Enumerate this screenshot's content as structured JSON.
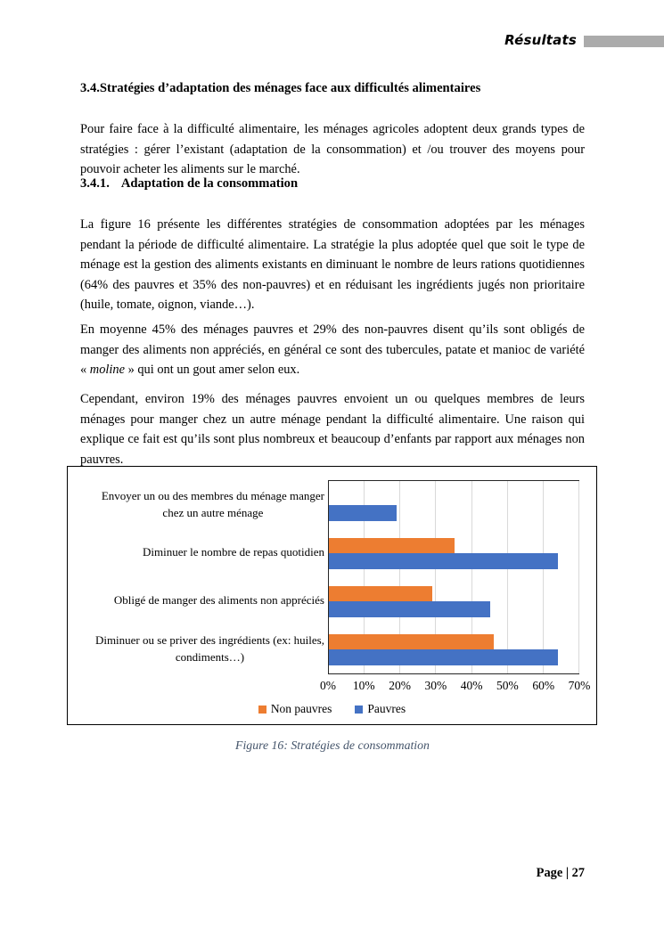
{
  "header": {
    "title": "Résultats"
  },
  "content": {
    "heading_3_4": "3.4.Stratégies d’adaptation des ménages face aux difficultés alimentaires",
    "para_intro": "Pour faire face à la difficulté alimentaire, les ménages agricoles adoptent deux grands types de stratégies : gérer l’existant (adaptation de la consommation) et /ou trouver des moyens pour pouvoir acheter les aliments sur le marché.",
    "heading_3_4_1_num": "3.4.1.",
    "heading_3_4_1_title": "Adaptation de la consommation",
    "para_figure": "La figure 16 présente les différentes stratégies de consommation adoptées par les ménages pendant la période de difficulté alimentaire. La stratégie la plus adoptée quel que soit le type de ménage est la gestion des aliments existants en diminuant le nombre de leurs rations quotidiennes (64% des pauvres et 35% des non-pauvres) et en réduisant les ingrédients jugés non prioritaire (huile, tomate, oignon, viande…).",
    "para_moline_pre": "En moyenne 45% des ménages pauvres et 29% des non-pauvres disent qu’ils sont obligés de manger des aliments non appréciés, en général ce sont des tubercules, patate et manioc de variété « ",
    "para_moline_italic": "moline",
    "para_moline_post": " » qui ont un gout amer selon eux.",
    "para_cependant": "Cependant, environ 19% des ménages pauvres envoient un ou quelques membres de leurs ménages pour manger chez un autre ménage pendant la difficulté alimentaire. Une raison qui explique ce fait est qu’ils sont plus nombreux et beaucoup d’enfants par rapport aux ménages non pauvres."
  },
  "chart_data": {
    "type": "bar",
    "orientation": "horizontal",
    "categories": [
      "Envoyer un ou des membres du ménage manger\nchez un autre ménage",
      "Diminuer le nombre de repas quotidien",
      "Obligé  de manger des aliments non appréciés",
      "Diminuer ou se priver des ingrédients (ex: huiles,\ncondiments…)"
    ],
    "series": [
      {
        "name": "Non pauvres",
        "color": "#ED7D31",
        "values": [
          null,
          35,
          29,
          46
        ]
      },
      {
        "name": "Pauvres",
        "color": "#4472C4",
        "values": [
          19,
          64,
          45,
          64
        ]
      }
    ],
    "x_ticks": [
      "0%",
      "10%",
      "20%",
      "30%",
      "40%",
      "50%",
      "60%",
      "70%"
    ],
    "xlim": [
      0,
      70
    ],
    "grid": true,
    "legend_position": "bottom",
    "title": ""
  },
  "caption": "Figure 16: Stratégies de consommation",
  "footer": {
    "page_label": "Page | 27"
  },
  "colors": {
    "accent_orange": "#ED7D31",
    "accent_blue": "#4472C4",
    "header_bar": "#ABABAB",
    "caption_text": "#44546A",
    "gridline": "#D9D9D9"
  }
}
